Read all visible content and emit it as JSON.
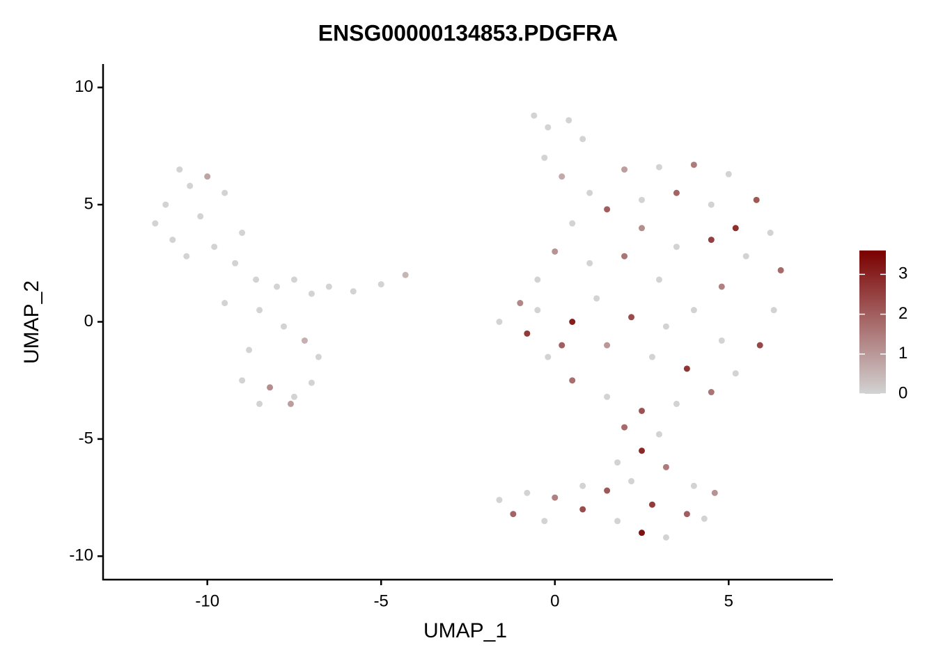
{
  "chart_data": {
    "type": "scatter",
    "title": "ENSG00000134853.PDGFRA",
    "x_label": "UMAP_1",
    "y_label": "UMAP_2",
    "x": [
      -11.5,
      -11.2,
      -10.8,
      -10.5,
      -11.0,
      -10.2,
      -10.0,
      -9.5,
      -9.8,
      -10.6,
      -9.2,
      -9.0,
      -8.6,
      -8.0,
      -7.5,
      -7.0,
      -6.5,
      -5.8,
      -5.0,
      -4.3,
      -8.5,
      -7.8,
      -7.2,
      -8.8,
      -6.8,
      -9.0,
      -8.2,
      -7.5,
      -8.5,
      -7.0,
      -7.6,
      -9.5,
      -0.6,
      -0.2,
      0.4,
      0.8,
      -0.3,
      0.2,
      1.0,
      2.0,
      3.0,
      4.0,
      5.0,
      5.8,
      6.2,
      6.5,
      6.3,
      5.9,
      5.2,
      4.5,
      3.5,
      2.5,
      1.5,
      0.5,
      -0.2,
      -0.8,
      -1.6,
      -1.0,
      -0.5,
      0.0,
      0.5,
      1.5,
      2.5,
      3.5,
      4.5,
      5.2,
      5.5,
      4.8,
      4.0,
      3.2,
      2.2,
      1.2,
      0.5,
      1.5,
      2.8,
      3.8,
      4.8,
      3.0,
      2.0,
      3.5,
      4.5,
      1.0,
      2.5,
      0.2,
      -0.5,
      2.0,
      3.0,
      2.5,
      1.8,
      3.2,
      2.2,
      1.5,
      0.8,
      0.0,
      -0.8,
      -1.6,
      -1.2,
      -0.3,
      0.8,
      1.8,
      2.5,
      3.2,
      3.8,
      4.3,
      4.6,
      4.0,
      2.8
    ],
    "y": [
      4.2,
      5.0,
      6.5,
      5.8,
      3.5,
      4.5,
      6.2,
      5.5,
      3.2,
      2.8,
      2.5,
      3.8,
      1.8,
      1.5,
      1.8,
      1.2,
      1.5,
      1.3,
      1.6,
      2.0,
      0.5,
      -0.2,
      -0.8,
      -1.2,
      -1.5,
      -2.5,
      -2.8,
      -3.2,
      -3.5,
      -2.6,
      -3.5,
      0.8,
      8.8,
      8.3,
      8.6,
      7.8,
      7.0,
      6.2,
      5.5,
      6.5,
      6.6,
      6.7,
      6.3,
      5.2,
      3.8,
      2.2,
      0.5,
      -1.0,
      -2.2,
      -3.0,
      -3.5,
      -3.8,
      -3.2,
      -2.5,
      -1.5,
      -0.5,
      0.0,
      0.8,
      1.8,
      3.0,
      4.2,
      4.8,
      5.2,
      5.5,
      5.0,
      4.0,
      2.8,
      1.5,
      0.5,
      -0.2,
      0.2,
      1.0,
      0.0,
      -1.0,
      -1.5,
      -2.0,
      -0.8,
      1.8,
      2.8,
      3.2,
      3.5,
      2.5,
      4.0,
      -1.0,
      0.5,
      -4.5,
      -4.8,
      -5.5,
      -6.0,
      -6.2,
      -6.8,
      -7.2,
      -7.0,
      -7.5,
      -7.3,
      -7.6,
      -8.2,
      -8.5,
      -8.0,
      -8.5,
      -9.0,
      -9.2,
      -8.2,
      -8.4,
      -7.3,
      -7.0,
      -7.8
    ],
    "values": [
      0,
      0,
      0,
      0,
      0,
      0,
      0.8,
      0,
      0,
      0,
      0,
      0,
      0,
      0,
      0,
      0,
      0,
      0,
      0,
      0.5,
      0,
      0,
      0.6,
      0,
      0,
      0,
      1.2,
      0,
      0,
      0,
      0.9,
      0,
      0,
      0,
      0,
      0,
      0,
      0.7,
      0,
      0.9,
      0,
      1.5,
      0,
      2.1,
      0,
      1.8,
      0,
      2.4,
      0,
      1.6,
      0,
      2.2,
      0,
      1.7,
      0,
      2.6,
      0,
      1.3,
      0,
      1.1,
      0,
      2.0,
      0,
      1.9,
      0,
      2.8,
      0,
      1.4,
      0,
      0,
      2.3,
      0,
      3.1,
      1.0,
      0,
      2.7,
      0,
      0,
      1.6,
      0,
      2.5,
      0,
      1.2,
      2.0,
      0,
      1.8,
      0,
      2.9,
      0,
      1.5,
      0,
      2.1,
      0,
      1.4,
      0,
      0,
      1.9,
      0,
      2.3,
      0,
      3.3,
      0,
      2.0,
      0,
      1.1,
      0,
      2.6
    ],
    "xlim": [
      -13,
      8
    ],
    "ylim": [
      -11,
      11
    ],
    "xticks": [
      -10,
      -5,
      0,
      5
    ],
    "yticks": [
      -10,
      -5,
      0,
      5,
      10
    ],
    "colorbar": {
      "lim": [
        0,
        3.6
      ],
      "ticks": [
        0,
        1,
        2,
        3
      ],
      "colors": [
        "#d3d3d3",
        "#7a0000"
      ]
    }
  }
}
